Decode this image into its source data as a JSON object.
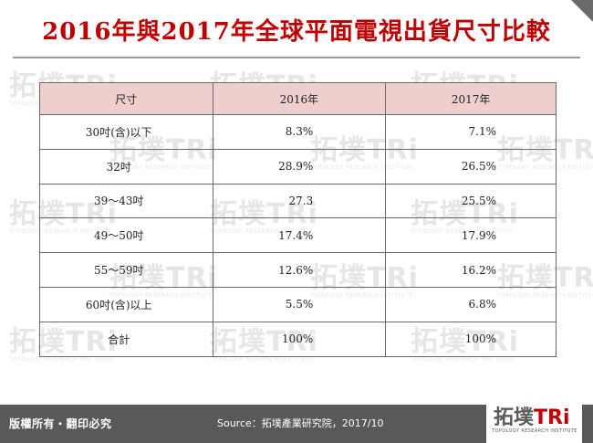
{
  "title": "2016年與2017年全球平面電視出貨尺寸比較",
  "watermark": {
    "text": "拓墣TRi",
    "subtext": "TOPOLOGY RESEARCH INSTITUTE"
  },
  "table": {
    "headers": [
      "尺寸",
      "2016年",
      "2017年"
    ],
    "rows": [
      {
        "size": "30吋(含)以下",
        "y2016": "8.3%",
        "y2017": "7.1%"
      },
      {
        "size": "32吋",
        "y2016": "28.9%",
        "y2017": "26.5%"
      },
      {
        "size": "39～43吋",
        "y2016": "27.3",
        "y2017": "25.5%"
      },
      {
        "size": "49～50吋",
        "y2016": "17.4%",
        "y2017": "17.9%"
      },
      {
        "size": "55～59吋",
        "y2016": "12.6%",
        "y2017": "16.2%"
      },
      {
        "size": "60吋(含)以上",
        "y2016": "5.5%",
        "y2017": "6.8%"
      },
      {
        "size": "合計",
        "y2016": "100%",
        "y2017": "100%"
      }
    ]
  },
  "footer": {
    "copyright": "版權所有・翻印必究",
    "source": "Source：拓墣產業研究院，2017/10",
    "logo_text": "拓墣",
    "logo_accent": "TRi",
    "logo_subtext": "TOPOLOGY RESEARCH INSTITUTE"
  },
  "colors": {
    "title": "#c00000",
    "header_fill": "#efcece",
    "footer_bar": "#595959"
  }
}
